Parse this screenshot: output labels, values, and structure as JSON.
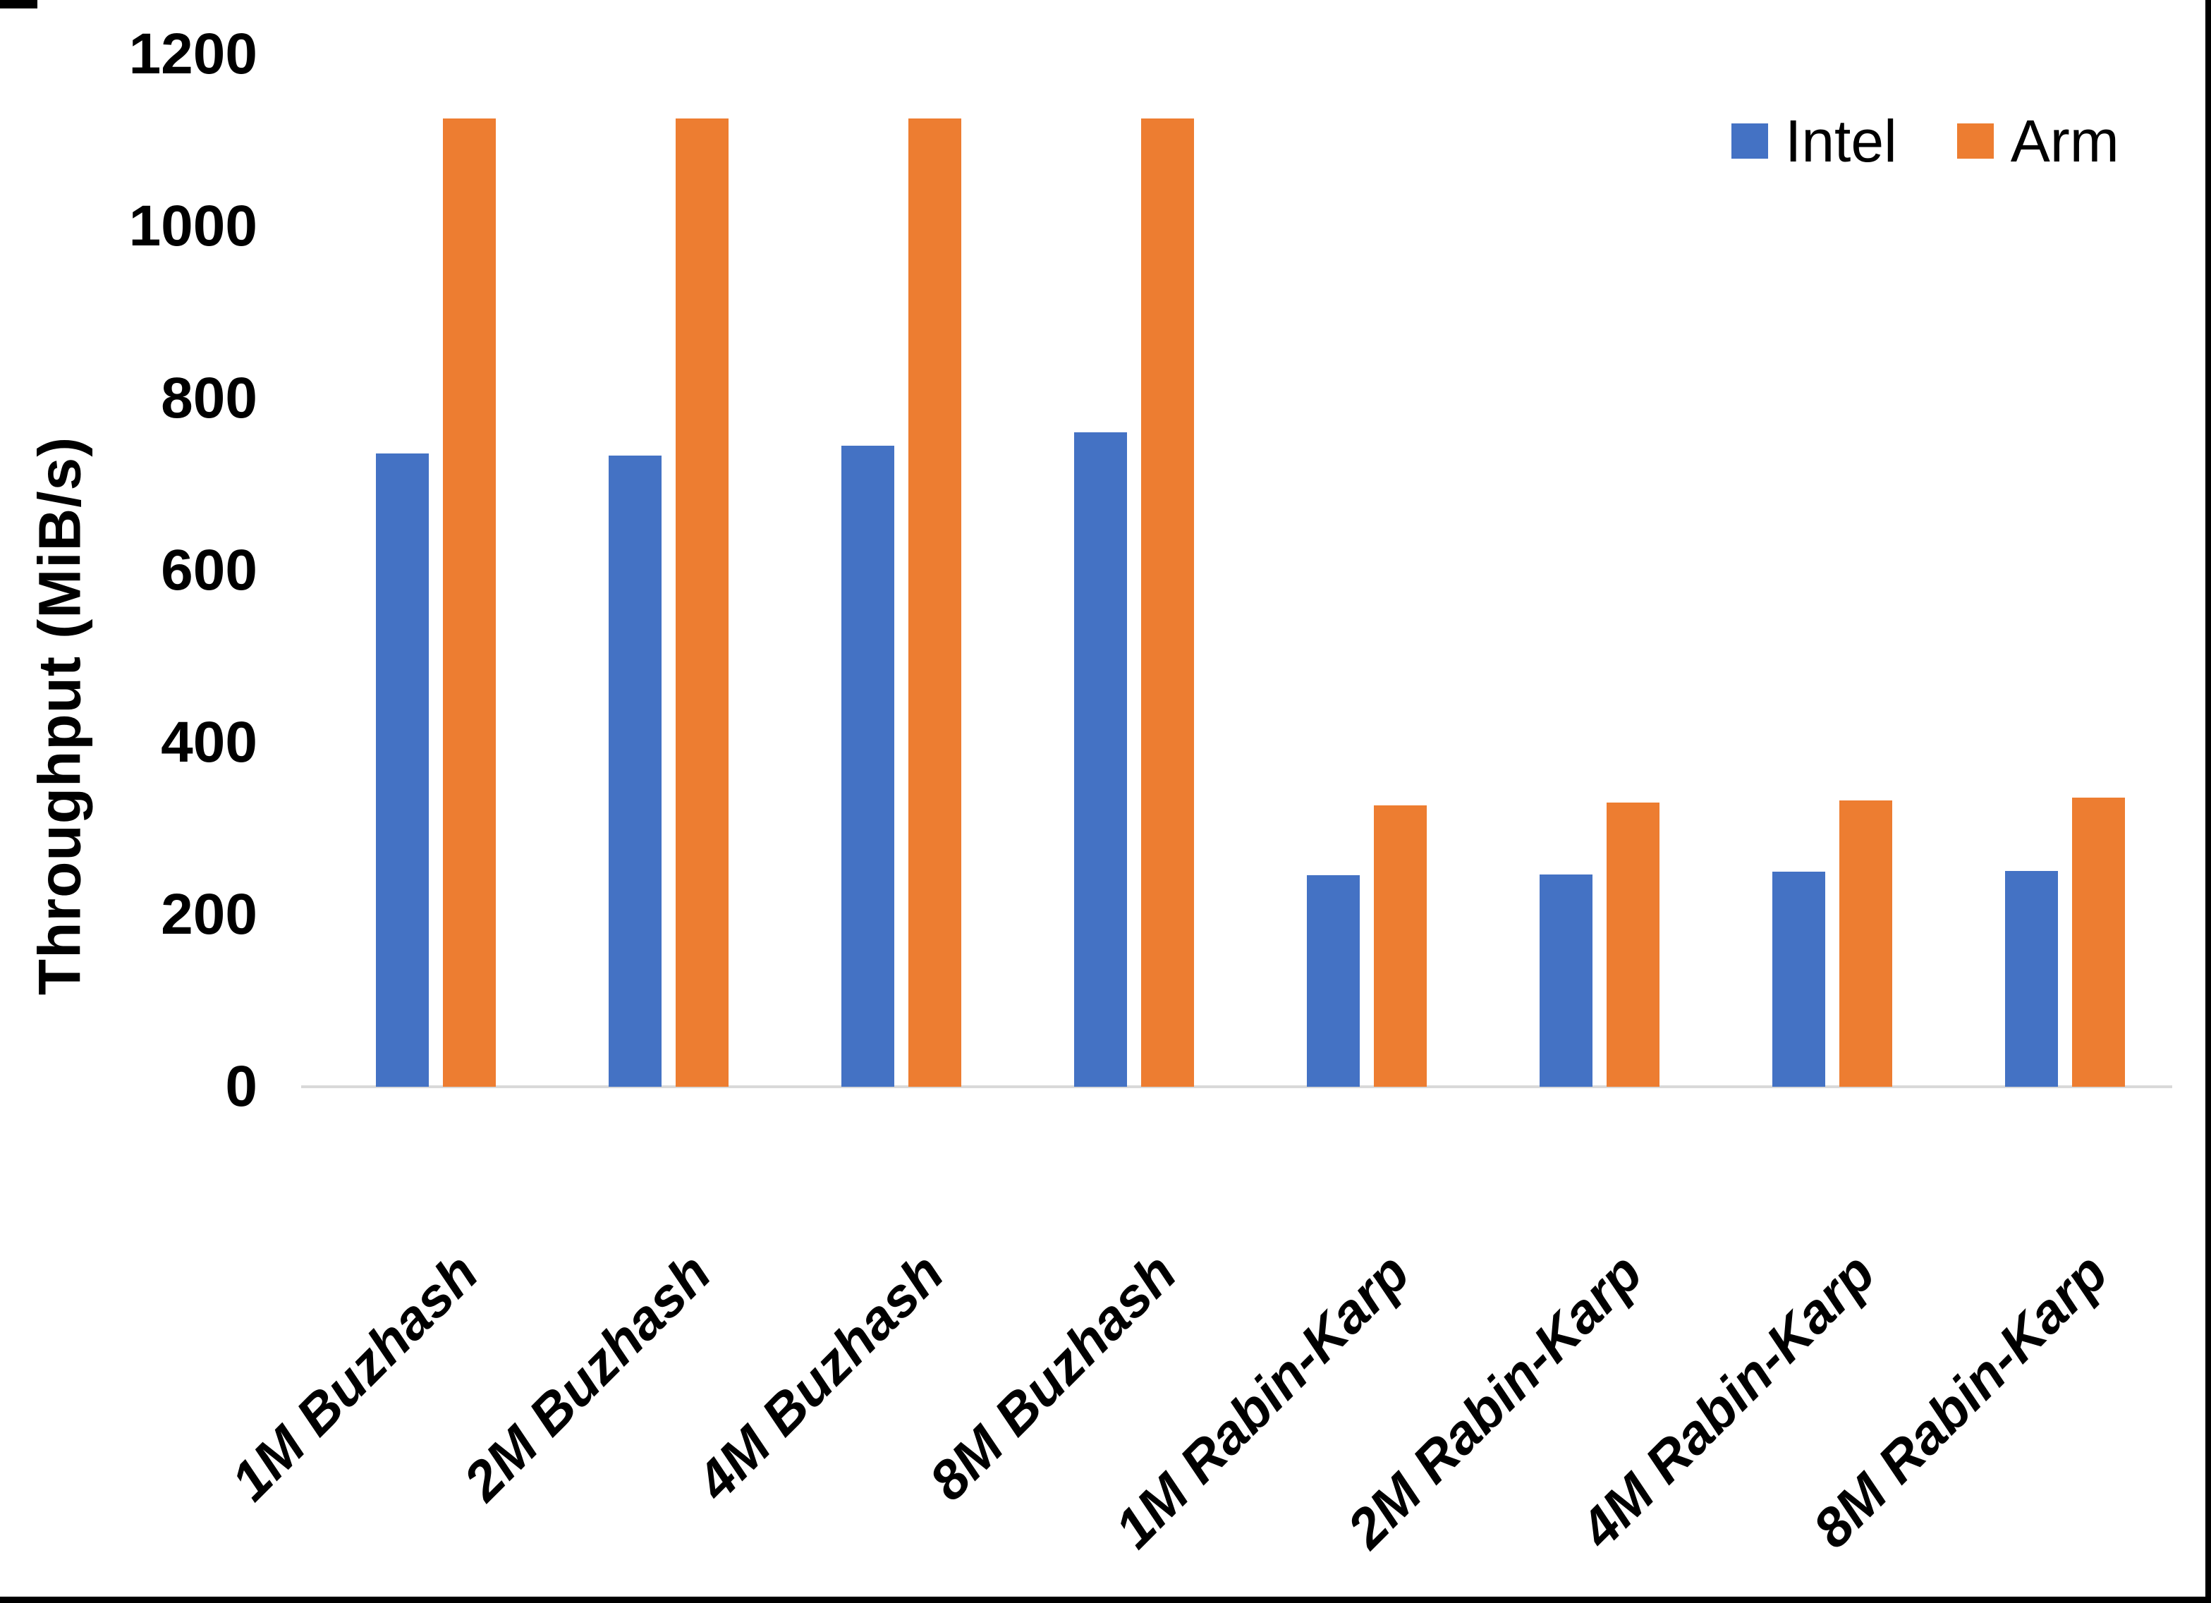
{
  "chart_data": {
    "type": "bar",
    "title": "",
    "xlabel": "",
    "ylabel": "Throughput (MiB/s)",
    "ylim": [
      0,
      1200
    ],
    "yticks": [
      0,
      200,
      400,
      600,
      800,
      1000,
      1200
    ],
    "ytick_labels": [
      "0",
      "200",
      "400",
      "600",
      "800",
      "1000",
      "1200"
    ],
    "grid": false,
    "legend_position": "top-right",
    "categories": [
      "1M Buzhash",
      "2M Buzhash",
      "4M Buzhash",
      "8M Buzhash",
      "1M Rabin-Karp",
      "2M Rabin-Karp",
      "4M Rabin-Karp",
      "8M Rabin-Karp"
    ],
    "series": [
      {
        "name": "Intel",
        "color": "#4472C4",
        "values": [
          736,
          734,
          745,
          761,
          246,
          247,
          250,
          251
        ]
      },
      {
        "name": "Arm",
        "color": "#ED7D31",
        "values": [
          1125,
          1125,
          1125,
          1125,
          327,
          330,
          333,
          336
        ]
      }
    ]
  },
  "legend": {
    "items": [
      {
        "label": "Intel",
        "color": "#4472C4",
        "swatch": "intel-series-swatch"
      },
      {
        "label": "Arm",
        "color": "#ED7D31",
        "swatch": "arm-series-swatch"
      }
    ]
  },
  "colors": {
    "background": "#FFFFFF",
    "axis_line": "#D9D9D9",
    "text": "#000000"
  }
}
